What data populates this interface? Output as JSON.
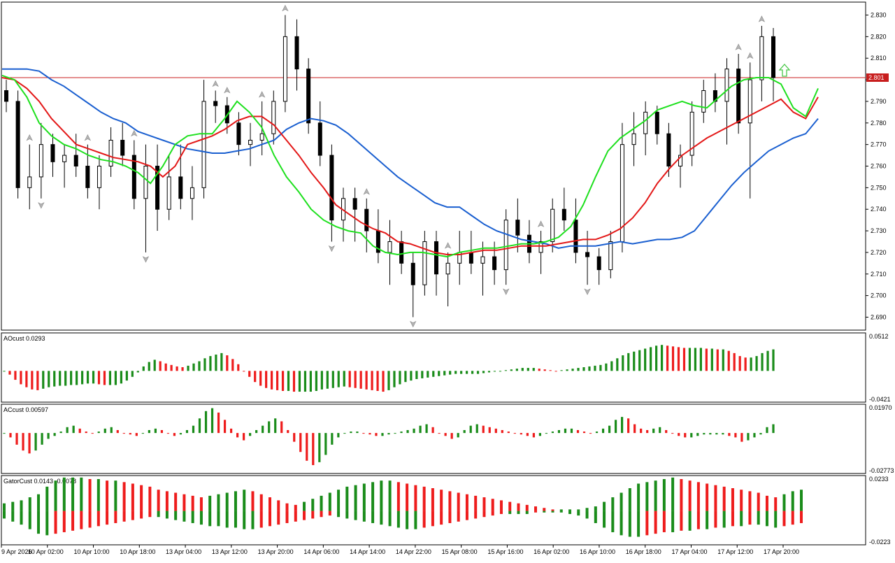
{
  "chart_data": [
    {
      "type": "candlestick",
      "pane": "main",
      "ylim": [
        2.684,
        2.836
      ],
      "y_ticks": [
        "2.830",
        "2.820",
        "2.810",
        "2.800",
        "2.790",
        "2.780",
        "2.770",
        "2.760",
        "2.750",
        "2.740",
        "2.730",
        "2.720",
        "2.710",
        "2.700",
        "2.690"
      ],
      "current_price": "2.801",
      "current_price_value": 2.801,
      "ohlc": [
        [
          2.795,
          2.8,
          2.785,
          2.79
        ],
        [
          2.79,
          2.795,
          2.745,
          2.75
        ],
        [
          2.75,
          2.77,
          2.74,
          2.755
        ],
        [
          2.755,
          2.78,
          2.745,
          2.77
        ],
        [
          2.77,
          2.775,
          2.755,
          2.762
        ],
        [
          2.762,
          2.77,
          2.75,
          2.765
        ],
        [
          2.765,
          2.775,
          2.755,
          2.76
        ],
        [
          2.76,
          2.77,
          2.745,
          2.75
        ],
        [
          2.75,
          2.765,
          2.74,
          2.76
        ],
        [
          2.76,
          2.778,
          2.755,
          2.772
        ],
        [
          2.772,
          2.78,
          2.76,
          2.765
        ],
        [
          2.765,
          2.772,
          2.74,
          2.745
        ],
        [
          2.745,
          2.77,
          2.72,
          2.76
        ],
        [
          2.76,
          2.77,
          2.73,
          2.74
        ],
        [
          2.74,
          2.765,
          2.735,
          2.755
        ],
        [
          2.755,
          2.77,
          2.74,
          2.745
        ],
        [
          2.745,
          2.76,
          2.735,
          2.75
        ],
        [
          2.75,
          2.8,
          2.745,
          2.79
        ],
        [
          2.79,
          2.795,
          2.78,
          2.788
        ],
        [
          2.788,
          2.792,
          2.775,
          2.78
        ],
        [
          2.78,
          2.785,
          2.765,
          2.77
        ],
        [
          2.77,
          2.78,
          2.76,
          2.772
        ],
        [
          2.772,
          2.79,
          2.765,
          2.775
        ],
        [
          2.775,
          2.795,
          2.77,
          2.79
        ],
        [
          2.79,
          2.83,
          2.785,
          2.82
        ],
        [
          2.82,
          2.828,
          2.795,
          2.805
        ],
        [
          2.805,
          2.81,
          2.775,
          2.78
        ],
        [
          2.78,
          2.79,
          2.76,
          2.765
        ],
        [
          2.765,
          2.77,
          2.725,
          2.735
        ],
        [
          2.735,
          2.75,
          2.725,
          2.745
        ],
        [
          2.745,
          2.75,
          2.725,
          2.74
        ],
        [
          2.74,
          2.745,
          2.72,
          2.73
        ],
        [
          2.73,
          2.74,
          2.715,
          2.72
        ],
        [
          2.72,
          2.735,
          2.705,
          2.725
        ],
        [
          2.725,
          2.73,
          2.71,
          2.715
        ],
        [
          2.715,
          2.72,
          2.69,
          2.705
        ],
        [
          2.705,
          2.73,
          2.7,
          2.725
        ],
        [
          2.725,
          2.73,
          2.7,
          2.71
        ],
        [
          2.71,
          2.72,
          2.695,
          2.715
        ],
        [
          2.715,
          2.73,
          2.705,
          2.72
        ],
        [
          2.72,
          2.73,
          2.71,
          2.715
        ],
        [
          2.715,
          2.725,
          2.7,
          2.718
        ],
        [
          2.718,
          2.725,
          2.705,
          2.712
        ],
        [
          2.712,
          2.74,
          2.705,
          2.735
        ],
        [
          2.735,
          2.745,
          2.72,
          2.728
        ],
        [
          2.728,
          2.735,
          2.715,
          2.72
        ],
        [
          2.72,
          2.73,
          2.71,
          2.725
        ],
        [
          2.725,
          2.745,
          2.72,
          2.74
        ],
        [
          2.74,
          2.75,
          2.73,
          2.735
        ],
        [
          2.735,
          2.745,
          2.715,
          2.72
        ],
        [
          2.72,
          2.73,
          2.705,
          2.718
        ],
        [
          2.718,
          2.722,
          2.705,
          2.712
        ],
        [
          2.712,
          2.73,
          2.708,
          2.725
        ],
        [
          2.725,
          2.78,
          2.72,
          2.77
        ],
        [
          2.77,
          2.785,
          2.76,
          2.775
        ],
        [
          2.775,
          2.79,
          2.765,
          2.785
        ],
        [
          2.785,
          2.788,
          2.77,
          2.775
        ],
        [
          2.775,
          2.78,
          2.755,
          2.76
        ],
        [
          2.76,
          2.77,
          2.75,
          2.765
        ],
        [
          2.765,
          2.79,
          2.76,
          2.785
        ],
        [
          2.785,
          2.8,
          2.78,
          2.795
        ],
        [
          2.795,
          2.803,
          2.785,
          2.79
        ],
        [
          2.79,
          2.81,
          2.77,
          2.805
        ],
        [
          2.805,
          2.812,
          2.775,
          2.78
        ],
        [
          2.78,
          2.808,
          2.745,
          2.8
        ],
        [
          2.8,
          2.825,
          2.79,
          2.82
        ],
        [
          2.82,
          2.824,
          2.79,
          2.801
        ]
      ],
      "arrows": {
        "up": [
          [
            2.781,
            "high"
          ],
          [
            2.75,
            "high"
          ],
          [
            2.795,
            "high"
          ],
          [
            2.791,
            "high"
          ],
          [
            2.788,
            "high"
          ],
          [
            2.778,
            "high"
          ],
          [
            2.775,
            "high"
          ],
          [
            2.76,
            "high"
          ],
          [
            2.725,
            "high"
          ],
          [
            2.747,
            "high"
          ],
          [
            2.812,
            "high"
          ],
          [
            2.825,
            "high"
          ],
          [
            2.818,
            "high"
          ]
        ],
        "down": [
          2.74,
          2.728,
          2.71,
          2.688
        ]
      },
      "signal": "up-arrow-green",
      "x_ticks": [
        "9 Apr 2026",
        "10 Apr 02:00",
        "10 Apr 10:00",
        "10 Apr 18:00",
        "13 Apr 04:00",
        "13 Apr 12:00",
        "13 Apr 20:00",
        "14 Apr 06:00",
        "14 Apr 14:00",
        "14 Apr 22:00",
        "15 Apr 08:00",
        "15 Apr 16:00",
        "16 Apr 02:00",
        "16 Apr 10:00",
        "16 Apr 18:00",
        "17 Apr 04:00",
        "17 Apr 12:00",
        "17 Apr 20:00"
      ],
      "series": [
        {
          "color": "#1a5fd0",
          "values": [
            2.805,
            2.805,
            2.805,
            2.804,
            2.8,
            2.797,
            2.793,
            2.789,
            2.785,
            2.782,
            2.78,
            2.776,
            2.774,
            2.772,
            2.77,
            2.768,
            2.767,
            2.766,
            2.766,
            2.767,
            2.768,
            2.77,
            2.772,
            2.777,
            2.78,
            2.782,
            2.781,
            2.779,
            2.775,
            2.77,
            2.765,
            2.76,
            2.755,
            2.751,
            2.747,
            2.743,
            2.741,
            2.741,
            2.737,
            2.733,
            2.73,
            2.728,
            2.726,
            2.725,
            2.724,
            2.722,
            2.723,
            2.723,
            2.723,
            2.724,
            2.725,
            2.724,
            2.725,
            2.726,
            2.726,
            2.727,
            2.73,
            2.737,
            2.744,
            2.751,
            2.757,
            2.762,
            2.767,
            2.77,
            2.773,
            2.775,
            2.782
          ]
        },
        {
          "color": "#e31818",
          "values": [
            2.801,
            2.8,
            2.796,
            2.79,
            2.782,
            2.776,
            2.77,
            2.768,
            2.766,
            2.764,
            2.763,
            2.762,
            2.76,
            2.755,
            2.76,
            2.77,
            2.772,
            2.774,
            2.777,
            2.781,
            2.783,
            2.783,
            2.779,
            2.772,
            2.765,
            2.757,
            2.75,
            2.742,
            2.738,
            2.734,
            2.731,
            2.729,
            2.725,
            2.724,
            2.722,
            2.72,
            2.719,
            2.719,
            2.72,
            2.721,
            2.721,
            2.722,
            2.723,
            2.723,
            2.723,
            2.724,
            2.725,
            2.726,
            2.726,
            2.728,
            2.731,
            2.736,
            2.743,
            2.752,
            2.759,
            2.765,
            2.769,
            2.773,
            2.776,
            2.779,
            2.782,
            2.785,
            2.788,
            2.791,
            2.785,
            2.782,
            2.792
          ]
        },
        {
          "color": "#1ee01e",
          "values": [
            2.802,
            2.8,
            2.792,
            2.78,
            2.774,
            2.77,
            2.768,
            2.765,
            2.763,
            2.762,
            2.76,
            2.757,
            2.752,
            2.76,
            2.77,
            2.774,
            2.775,
            2.775,
            2.782,
            2.79,
            2.785,
            2.778,
            2.765,
            2.755,
            2.748,
            2.74,
            2.735,
            2.732,
            2.73,
            2.729,
            2.723,
            2.72,
            2.719,
            2.72,
            2.72,
            2.719,
            2.718,
            2.72,
            2.721,
            2.722,
            2.722,
            2.723,
            2.724,
            2.724,
            2.725,
            2.727,
            2.732,
            2.742,
            2.755,
            2.767,
            2.773,
            2.777,
            2.781,
            2.786,
            2.788,
            2.79,
            2.788,
            2.787,
            2.792,
            2.797,
            2.8,
            2.801,
            2.801,
            2.798,
            2.787,
            2.783,
            2.796
          ]
        }
      ]
    },
    {
      "type": "bar",
      "pane": "AOcust",
      "title": "AOcust 0.0293",
      "ylim": [
        -0.0421,
        0.0512
      ],
      "y_ticks": [
        "0.0512",
        "-0.0421"
      ],
      "values": [
        0.0,
        -0.005,
        -0.012,
        -0.018,
        -0.022,
        -0.025,
        -0.026,
        -0.024,
        -0.022,
        -0.021,
        -0.02,
        -0.02,
        -0.019,
        -0.019,
        -0.018,
        -0.017,
        -0.017,
        -0.018,
        -0.019,
        -0.019,
        -0.019,
        -0.017,
        -0.013,
        -0.008,
        -0.002,
        0.006,
        0.012,
        0.015,
        0.013,
        0.01,
        0.008,
        0.006,
        0.005,
        0.007,
        0.01,
        0.013,
        0.017,
        0.02,
        0.022,
        0.024,
        0.021,
        0.016,
        0.009,
        0.0,
        -0.008,
        -0.015,
        -0.02,
        -0.023,
        -0.025,
        -0.026,
        -0.027,
        -0.027,
        -0.028,
        -0.028,
        -0.028,
        -0.028,
        -0.027,
        -0.025,
        -0.024,
        -0.023,
        -0.022,
        -0.021,
        -0.022,
        -0.023,
        -0.024,
        -0.025,
        -0.026,
        -0.027,
        -0.028,
        -0.026,
        -0.022,
        -0.018,
        -0.015,
        -0.013,
        -0.011,
        -0.01,
        -0.009,
        -0.008,
        -0.007,
        -0.006,
        -0.005,
        -0.004,
        -0.004,
        -0.004,
        -0.004,
        -0.004,
        -0.003,
        -0.002,
        -0.001,
        0.0,
        0.001,
        0.002,
        0.003,
        0.004,
        0.004,
        0.004,
        0.003,
        0.002,
        0.001,
        0.0,
        0.001,
        0.002,
        0.003,
        0.004,
        0.005,
        0.006,
        0.007,
        0.008,
        0.01,
        0.013,
        0.017,
        0.021,
        0.024,
        0.026,
        0.028,
        0.03,
        0.032,
        0.034,
        0.035,
        0.034,
        0.033,
        0.032,
        0.031,
        0.031,
        0.031,
        0.031,
        0.03,
        0.03,
        0.029,
        0.029,
        0.027,
        0.024,
        0.02,
        0.018,
        0.018,
        0.02,
        0.024,
        0.027,
        0.029
      ],
      "colors": "green-if-rising-red-if-falling"
    },
    {
      "type": "bar",
      "pane": "ACcust",
      "title": "ACcust 0.00597",
      "ylim": [
        -0.02773,
        0.0197
      ],
      "y_ticks": [
        "0.01970",
        "-0.02773"
      ],
      "values": [
        0.0,
        -0.003,
        -0.008,
        -0.012,
        -0.014,
        -0.012,
        -0.008,
        -0.004,
        -0.002,
        0.001,
        0.004,
        0.005,
        0.003,
        0.001,
        0.0,
        0.001,
        0.003,
        0.004,
        0.002,
        0.0,
        -0.001,
        -0.002,
        0.0,
        0.002,
        0.003,
        0.002,
        0.0,
        -0.002,
        -0.001,
        0.002,
        0.005,
        0.01,
        0.015,
        0.017,
        0.014,
        0.009,
        0.003,
        -0.003,
        -0.005,
        -0.002,
        0.002,
        0.005,
        0.008,
        0.01,
        0.008,
        0.002,
        -0.006,
        -0.013,
        -0.019,
        -0.022,
        -0.02,
        -0.015,
        -0.008,
        -0.003,
        0.0,
        0.001,
        0.001,
        0.0,
        -0.001,
        -0.002,
        -0.002,
        -0.001,
        0.0,
        0.001,
        0.002,
        0.003,
        0.005,
        0.006,
        0.004,
        0.0,
        -0.002,
        -0.004,
        -0.003,
        0.002,
        0.005,
        0.006,
        0.005,
        0.004,
        0.003,
        0.002,
        0.001,
        0.0,
        -0.001,
        -0.002,
        -0.003,
        -0.002,
        0.0,
        0.001,
        0.002,
        0.003,
        0.003,
        0.002,
        0.001,
        0.0,
        0.001,
        0.003,
        0.005,
        0.009,
        0.011,
        0.01,
        0.006,
        0.003,
        0.002,
        0.003,
        0.004,
        0.002,
        0.0,
        -0.002,
        -0.003,
        -0.003,
        -0.002,
        -0.001,
        -0.001,
        -0.001,
        -0.001,
        -0.002,
        -0.003,
        -0.006,
        -0.005,
        -0.003,
        -0.001,
        0.004,
        0.006
      ],
      "colors": "green-if-rising-red-if-falling"
    },
    {
      "type": "bar",
      "pane": "GatorCust",
      "title": "GatorCust 0.0143 -0.0078",
      "ylim": [
        -0.0223,
        0.0233
      ],
      "y_ticks": [
        "0.0233",
        "-0.0223"
      ],
      "upper": [
        0.005,
        0.006,
        0.007,
        0.009,
        0.011,
        0.016,
        0.02,
        0.022,
        0.022,
        0.022,
        0.021,
        0.021,
        0.02,
        0.02,
        0.019,
        0.018,
        0.017,
        0.016,
        0.014,
        0.013,
        0.012,
        0.011,
        0.01,
        0.009,
        0.01,
        0.011,
        0.012,
        0.013,
        0.014,
        0.013,
        0.011,
        0.009,
        0.007,
        0.005,
        0.004,
        0.006,
        0.008,
        0.01,
        0.012,
        0.014,
        0.016,
        0.017,
        0.018,
        0.019,
        0.02,
        0.02,
        0.019,
        0.018,
        0.017,
        0.016,
        0.015,
        0.014,
        0.013,
        0.012,
        0.011,
        0.01,
        0.009,
        0.008,
        0.007,
        0.006,
        0.005,
        0.004,
        0.003,
        0.002,
        0.001,
        0.001,
        0.001,
        0.001,
        0.002,
        0.003,
        0.006,
        0.009,
        0.012,
        0.015,
        0.018,
        0.019,
        0.02,
        0.021,
        0.022,
        0.021,
        0.02,
        0.019,
        0.018,
        0.017,
        0.016,
        0.015,
        0.014,
        0.013,
        0.012,
        0.01,
        0.009,
        0.011,
        0.013,
        0.014
      ],
      "lower": [
        -0.005,
        -0.007,
        -0.009,
        -0.012,
        -0.015,
        -0.016,
        -0.015,
        -0.014,
        -0.013,
        -0.012,
        -0.011,
        -0.01,
        -0.009,
        -0.008,
        -0.007,
        -0.006,
        -0.005,
        -0.004,
        -0.004,
        -0.005,
        -0.006,
        -0.007,
        -0.008,
        -0.009,
        -0.01,
        -0.01,
        -0.011,
        -0.011,
        -0.012,
        -0.012,
        -0.011,
        -0.01,
        -0.009,
        -0.008,
        -0.007,
        -0.006,
        -0.005,
        -0.004,
        -0.003,
        -0.004,
        -0.005,
        -0.006,
        -0.007,
        -0.008,
        -0.009,
        -0.01,
        -0.011,
        -0.012,
        -0.012,
        -0.011,
        -0.01,
        -0.009,
        -0.008,
        -0.007,
        -0.006,
        -0.005,
        -0.004,
        -0.003,
        -0.002,
        -0.002,
        -0.002,
        -0.002,
        -0.001,
        -0.001,
        -0.001,
        -0.001,
        -0.002,
        -0.003,
        -0.005,
        -0.008,
        -0.011,
        -0.014,
        -0.016,
        -0.017,
        -0.017,
        -0.016,
        -0.015,
        -0.014,
        -0.014,
        -0.013,
        -0.013,
        -0.012,
        -0.012,
        -0.011,
        -0.011,
        -0.01,
        -0.01,
        -0.009,
        -0.009,
        -0.01,
        -0.011,
        -0.01,
        -0.009,
        -0.008
      ]
    }
  ],
  "colors": {
    "bull": "#ffffff",
    "bear": "#000000",
    "up": "#1a8c1a",
    "down": "#ee1c1c",
    "price_line": "#c81e1e",
    "arrow": "#b4b4b4",
    "signal": "#49c849"
  }
}
